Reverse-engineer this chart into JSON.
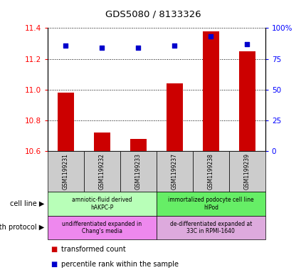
{
  "title": "GDS5080 / 8133326",
  "samples": [
    "GSM1199231",
    "GSM1199232",
    "GSM1199233",
    "GSM1199237",
    "GSM1199238",
    "GSM1199239"
  ],
  "bar_values": [
    10.98,
    10.72,
    10.68,
    11.04,
    11.38,
    11.25
  ],
  "scatter_values": [
    86,
    84,
    84,
    86,
    93,
    87
  ],
  "ylim_left": [
    10.6,
    11.4
  ],
  "ylim_right": [
    0,
    100
  ],
  "yticks_left": [
    10.6,
    10.8,
    11.0,
    11.2,
    11.4
  ],
  "yticks_right": [
    0,
    25,
    50,
    75,
    100
  ],
  "ytick_labels_right": [
    "0",
    "25",
    "50",
    "75",
    "100%"
  ],
  "bar_color": "#cc0000",
  "scatter_color": "#0000cc",
  "cell_line_groups": [
    {
      "label": "amniotic-fluid derived\nhAKPC-P",
      "samples": [
        0,
        1,
        2
      ],
      "color": "#b8ffb8"
    },
    {
      "label": "immortalized podocyte cell line\nhIPod",
      "samples": [
        3,
        4,
        5
      ],
      "color": "#66ee66"
    }
  ],
  "growth_protocol_groups": [
    {
      "label": "undifferentiated expanded in\nChang's media",
      "samples": [
        0,
        1,
        2
      ],
      "color": "#ee88ee"
    },
    {
      "label": "de-differentiated expanded at\n33C in RPMI-1640",
      "samples": [
        3,
        4,
        5
      ],
      "color": "#ddaadd"
    }
  ],
  "cell_line_label": "cell line",
  "growth_protocol_label": "growth protocol",
  "legend_bar_label": "transformed count",
  "legend_scatter_label": "percentile rank within the sample"
}
